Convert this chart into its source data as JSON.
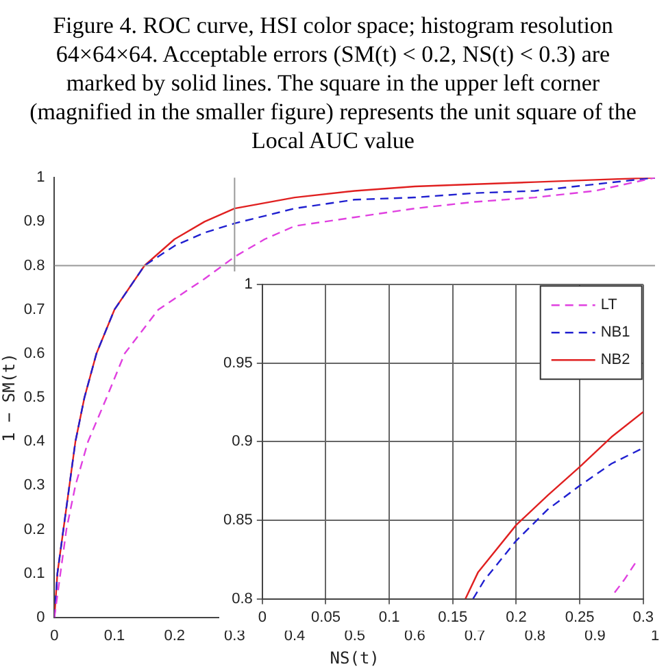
{
  "chart_data": [
    {
      "type": "line",
      "title": "Figure 4. ROC curve, HSI color space; histogram resolution 64×64×64. Acceptable errors (SM(t) < 0.2, NS(t) < 0.3) are marked by solid lines. The square in the upper left corner (magnified in the smaller figure) represents the unit square of the Local AUC value",
      "xlabel": "NS(t)",
      "ylabel": "1 − SM(t)",
      "xlim": [
        0,
        1
      ],
      "ylim": [
        0,
        1
      ],
      "xticks": [
        0,
        0.1,
        0.2,
        0.3,
        0.4,
        0.5,
        0.6,
        0.7,
        0.8,
        0.9,
        1
      ],
      "yticks": [
        0,
        0.1,
        0.2,
        0.3,
        0.4,
        0.5,
        0.6,
        0.7,
        0.8,
        0.9,
        1
      ],
      "grid": false,
      "marker": "none",
      "ref_lines": [
        {
          "axis": "x",
          "value": 0.3,
          "color": "#999999"
        },
        {
          "axis": "y",
          "value": 0.8,
          "color": "#999999"
        }
      ],
      "series": [
        {
          "color": "#e040e0",
          "line_style": "dashed",
          "x": [
            0,
            0.01,
            0.02,
            0.035,
            0.056,
            0.087,
            0.117,
            0.173,
            0.25,
            0.3,
            0.35,
            0.4,
            0.5,
            0.6,
            0.7,
            0.8,
            0.9,
            1
          ],
          "values": [
            0,
            0.1,
            0.2,
            0.3,
            0.4,
            0.5,
            0.6,
            0.7,
            0.77,
            0.82,
            0.86,
            0.89,
            0.91,
            0.93,
            0.945,
            0.955,
            0.97,
            1
          ]
        },
        {
          "color": "#2020d0",
          "line_style": "dashed",
          "x": [
            0,
            0.005,
            0.015,
            0.025,
            0.035,
            0.05,
            0.07,
            0.1,
            0.15,
            0.2,
            0.25,
            0.3,
            0.4,
            0.5,
            0.6,
            0.7,
            0.8,
            0.9,
            1
          ],
          "values": [
            0,
            0.1,
            0.2,
            0.3,
            0.4,
            0.5,
            0.6,
            0.7,
            0.8,
            0.845,
            0.875,
            0.896,
            0.93,
            0.95,
            0.955,
            0.965,
            0.97,
            0.985,
            1
          ]
        },
        {
          "color": "#e02020",
          "line_style": "solid",
          "x": [
            0,
            0.005,
            0.015,
            0.025,
            0.035,
            0.05,
            0.07,
            0.1,
            0.15,
            0.2,
            0.25,
            0.3,
            0.4,
            0.5,
            0.6,
            0.7,
            0.8,
            0.9,
            1
          ],
          "values": [
            0,
            0.1,
            0.2,
            0.3,
            0.4,
            0.5,
            0.6,
            0.7,
            0.8,
            0.86,
            0.9,
            0.93,
            0.955,
            0.97,
            0.98,
            0.985,
            0.99,
            0.995,
            1
          ]
        }
      ]
    },
    {
      "type": "line",
      "xlim": [
        0,
        0.3
      ],
      "ylim": [
        0.8,
        1
      ],
      "xticks": [
        0,
        0.05,
        0.1,
        0.15,
        0.2,
        0.25,
        0.3
      ],
      "yticks": [
        0.8,
        0.85,
        0.9,
        0.95,
        1
      ],
      "grid": true,
      "legend": "top right",
      "marker": "none",
      "series": [
        {
          "name": "LT",
          "color": "#e040e0",
          "line_style": "dashed",
          "x": [
            0.2775,
            0.285,
            0.294
          ],
          "values": [
            0.804,
            0.812,
            0.823
          ]
        },
        {
          "name": "NB1",
          "color": "#2020d0",
          "line_style": "dashed",
          "x": [
            0.166,
            0.175,
            0.2,
            0.225,
            0.25,
            0.275,
            0.3
          ],
          "values": [
            0.8,
            0.812,
            0.837,
            0.857,
            0.872,
            0.886,
            0.896
          ]
        },
        {
          "name": "NB2",
          "color": "#e02020",
          "line_style": "solid",
          "x": [
            0.16,
            0.17,
            0.2,
            0.225,
            0.25,
            0.275,
            0.3
          ],
          "values": [
            0.8,
            0.817,
            0.847,
            0.866,
            0.884,
            0.903,
            0.919
          ]
        }
      ]
    }
  ]
}
